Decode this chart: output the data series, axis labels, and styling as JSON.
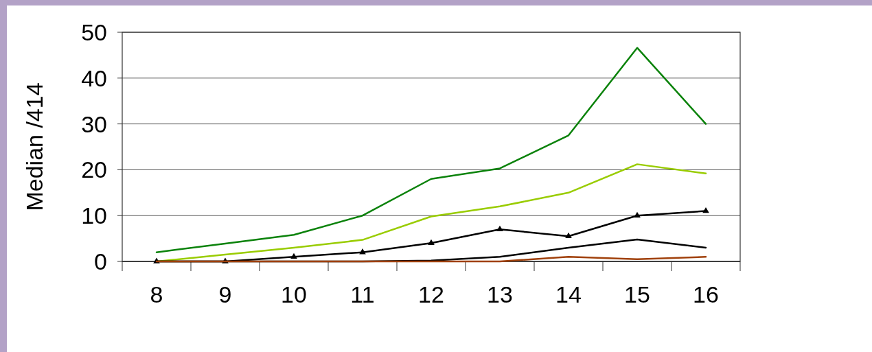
{
  "chart_data": {
    "type": "line",
    "ylabel": "Median /414",
    "categories": [
      "8",
      "9",
      "10",
      "11",
      "12",
      "13",
      "14",
      "15",
      "16"
    ],
    "ylim": [
      0,
      50
    ],
    "yticks": [
      0,
      10,
      20,
      30,
      40,
      50
    ],
    "grid": "y",
    "series": [
      {
        "color": "#0a820a",
        "values": [
          2,
          3.9,
          5.8,
          10,
          18,
          20.3,
          27.5,
          46.6,
          30
        ]
      },
      {
        "color": "#99cc00",
        "values": [
          0,
          1.5,
          3,
          4.7,
          9.8,
          12,
          15,
          21.2,
          19.2
        ]
      },
      {
        "color": "#000000",
        "marker": "triangle",
        "values": [
          0,
          0,
          1,
          2,
          4,
          7,
          5.5,
          10,
          11
        ]
      },
      {
        "color": "#000000",
        "values": [
          0,
          0,
          0,
          0,
          0.2,
          1,
          3,
          4.8,
          3
        ]
      },
      {
        "color": "#a0400a",
        "values": [
          0,
          0,
          0,
          0,
          0,
          0,
          1,
          0.5,
          1
        ]
      }
    ]
  }
}
